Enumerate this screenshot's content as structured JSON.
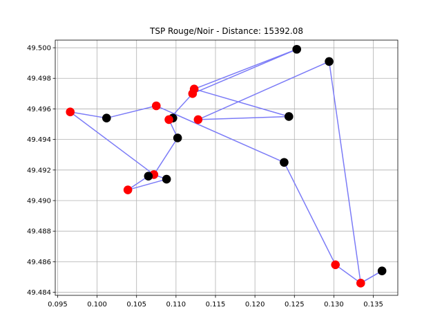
{
  "chart_data": {
    "type": "scatter",
    "title": "TSP Rouge/Noir - Distance: 15392.08",
    "xlabel": "",
    "ylabel": "",
    "xlim": [
      0.0947,
      0.1381
    ],
    "ylim": [
      49.4838,
      49.5005
    ],
    "x_ticks": [
      0.095,
      0.1,
      0.105,
      0.11,
      0.115,
      0.12,
      0.125,
      0.13,
      0.135
    ],
    "x_tick_labels": [
      "0.095",
      "0.100",
      "0.105",
      "0.110",
      "0.115",
      "0.120",
      "0.125",
      "0.130",
      "0.135"
    ],
    "y_ticks": [
      49.484,
      49.486,
      49.488,
      49.49,
      49.492,
      49.494,
      49.496,
      49.498,
      49.5
    ],
    "y_tick_labels": [
      "49.484",
      "49.486",
      "49.488",
      "49.490",
      "49.492",
      "49.494",
      "49.496",
      "49.498",
      "49.500"
    ],
    "grid": true,
    "legend": "none",
    "colors": {
      "red": "#ff0000",
      "black": "#000000",
      "route": "#7b7bf7",
      "grid": "#b0b0b0"
    },
    "points": [
      {
        "x": 0.1253,
        "y": 49.4999,
        "color": "black"
      },
      {
        "x": 0.1123,
        "y": 49.4973,
        "color": "red"
      },
      {
        "x": 0.1243,
        "y": 49.4955,
        "color": "black"
      },
      {
        "x": 0.1121,
        "y": 49.497,
        "color": "red"
      },
      {
        "x": 0.1096,
        "y": 49.4954,
        "color": "black"
      },
      {
        "x": 0.1075,
        "y": 49.4962,
        "color": "red"
      },
      {
        "x": 0.1012,
        "y": 49.4954,
        "color": "black"
      },
      {
        "x": 0.0966,
        "y": 49.4958,
        "color": "red"
      },
      {
        "x": 0.1072,
        "y": 49.4917,
        "color": "red"
      },
      {
        "x": 0.1065,
        "y": 49.4916,
        "color": "black"
      },
      {
        "x": 0.1039,
        "y": 49.4907,
        "color": "red"
      },
      {
        "x": 0.1088,
        "y": 49.4914,
        "color": "black"
      },
      {
        "x": 0.1102,
        "y": 49.4941,
        "color": "black"
      },
      {
        "x": 0.1091,
        "y": 49.4953,
        "color": "red"
      },
      {
        "x": 0.1237,
        "y": 49.4925,
        "color": "black"
      },
      {
        "x": 0.1302,
        "y": 49.4858,
        "color": "red"
      },
      {
        "x": 0.1334,
        "y": 49.4846,
        "color": "red"
      },
      {
        "x": 0.1361,
        "y": 49.4854,
        "color": "black"
      },
      {
        "x": 0.1294,
        "y": 49.4991,
        "color": "black"
      },
      {
        "x": 0.1128,
        "y": 49.4953,
        "color": "red"
      }
    ],
    "route": [
      [
        0.1253,
        49.4999
      ],
      [
        0.1123,
        49.4973
      ],
      [
        0.1243,
        49.4955
      ],
      [
        0.1128,
        49.4953
      ],
      [
        0.1294,
        49.4991
      ],
      [
        0.1334,
        49.4846
      ],
      [
        0.1361,
        49.4854
      ],
      [
        0.1334,
        49.4846
      ],
      [
        0.1302,
        49.4858
      ],
      [
        0.1237,
        49.4925
      ],
      [
        0.1075,
        49.4962
      ],
      [
        0.1012,
        49.4954
      ],
      [
        0.0966,
        49.4958
      ],
      [
        0.1072,
        49.4917
      ],
      [
        0.1065,
        49.4916
      ],
      [
        0.1039,
        49.4907
      ],
      [
        0.1088,
        49.4914
      ],
      [
        0.1072,
        49.4917
      ],
      [
        0.1102,
        49.4941
      ],
      [
        0.1091,
        49.4953
      ],
      [
        0.1121,
        49.497
      ],
      [
        0.1253,
        49.4999
      ]
    ]
  }
}
